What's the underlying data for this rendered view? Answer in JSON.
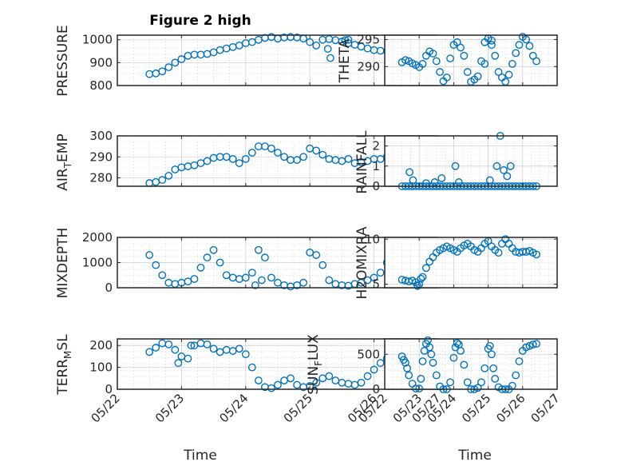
{
  "figure": {
    "title": "Figure 2 high",
    "xlabel": "Time",
    "x_ticklabels": [
      "05/22",
      "05/23",
      "05/24",
      "05/25",
      "05/26",
      "05/27"
    ],
    "marker_color": "#0072BD"
  },
  "chart_data": [
    {
      "type": "scatter",
      "ylabel": "PRESSURE",
      "ylim": [
        800,
        1020
      ],
      "yticks": [
        800,
        900,
        1000
      ],
      "x_unit": "days since 05/22",
      "x": [
        0.5,
        0.6,
        0.7,
        0.8,
        0.9,
        1.0,
        1.1,
        1.2,
        1.3,
        1.4,
        1.5,
        1.6,
        1.7,
        1.8,
        1.9,
        2.0,
        2.1,
        2.2,
        2.3,
        2.4,
        2.5,
        2.6,
        2.7,
        2.8,
        2.9,
        3.0,
        3.1,
        3.2,
        3.3,
        3.4,
        3.5,
        3.6,
        3.7,
        3.8,
        3.9,
        4.0,
        4.1,
        4.2,
        4.3,
        4.4,
        3.28,
        3.32,
        3.55,
        3.6
      ],
      "y": [
        850,
        853,
        862,
        880,
        900,
        915,
        930,
        935,
        935,
        938,
        945,
        955,
        962,
        968,
        975,
        985,
        990,
        1000,
        1008,
        1012,
        1005,
        1010,
        1012,
        1010,
        1005,
        990,
        975,
        1000,
        1003,
        998,
        992,
        985,
        978,
        970,
        962,
        955,
        952,
        950,
        948,
        952,
        960,
        920,
        998,
        1000
      ],
      "grid": true,
      "legend": "none"
    },
    {
      "type": "scatter",
      "ylabel": "THETA",
      "ylim": [
        286.5,
        295.8
      ],
      "yticks": [
        290,
        295
      ],
      "x_unit": "days since 05/22",
      "x": [
        0.5,
        0.6,
        0.7,
        0.8,
        0.9,
        1.0,
        1.1,
        1.2,
        1.3,
        1.4,
        1.5,
        1.6,
        1.7,
        1.8,
        1.9,
        2.0,
        2.1,
        2.2,
        2.3,
        2.4,
        2.5,
        2.6,
        2.7,
        2.8,
        2.9,
        3.0,
        3.1,
        3.2,
        3.3,
        3.4,
        3.5,
        3.6,
        3.7,
        3.8,
        3.9,
        4.0,
        4.1,
        4.2,
        4.3,
        4.4,
        2.9,
        3.1
      ],
      "y": [
        290.8,
        291.2,
        291.0,
        290.6,
        290.3,
        289.9,
        290.5,
        292.0,
        292.8,
        292.4,
        291.0,
        289.0,
        287.3,
        288.0,
        291.5,
        294.0,
        294.5,
        293.5,
        292.0,
        289.0,
        287.2,
        287.6,
        288.2,
        291.0,
        294.5,
        295.2,
        294.0,
        292.0,
        289.0,
        288.0,
        287.2,
        288.5,
        290.5,
        292.5,
        294.0,
        295.5,
        295.0,
        293.8,
        292.0,
        291.0,
        290.5,
        294.8
      ],
      "grid": true,
      "legend": "none"
    },
    {
      "type": "scatter",
      "ylabel": "AIR_TEMP",
      "ylim": [
        276,
        300
      ],
      "yticks": [
        280,
        290,
        300
      ],
      "x_unit": "days since 05/22",
      "x": [
        0.5,
        0.6,
        0.7,
        0.8,
        0.9,
        1.0,
        1.1,
        1.2,
        1.3,
        1.4,
        1.5,
        1.6,
        1.7,
        1.8,
        1.9,
        2.0,
        2.1,
        2.2,
        2.3,
        2.4,
        2.5,
        2.6,
        2.7,
        2.8,
        2.9,
        3.0,
        3.1,
        3.2,
        3.3,
        3.4,
        3.5,
        3.6,
        3.7,
        3.8,
        3.9,
        4.0,
        4.1,
        4.2,
        4.3,
        4.4
      ],
      "y": [
        277.5,
        278,
        279,
        281,
        284,
        285,
        285.5,
        286,
        287,
        288,
        289.5,
        290,
        290,
        289,
        287,
        289,
        292,
        295,
        295,
        294,
        292,
        290,
        288.5,
        288.5,
        290,
        294,
        293,
        291,
        289,
        288.5,
        288,
        289,
        287,
        287.5,
        288,
        289,
        289,
        290,
        291,
        292
      ],
      "grid": true,
      "legend": "none"
    },
    {
      "type": "scatter",
      "ylabel": "RAINFALL",
      "ylim": [
        0,
        2.5
      ],
      "yticks": [
        0,
        1,
        2
      ],
      "x_unit": "days since 05/22",
      "x": [
        0.5,
        0.6,
        0.7,
        0.8,
        0.9,
        1.0,
        1.1,
        1.2,
        1.3,
        1.4,
        1.5,
        1.6,
        1.7,
        1.8,
        1.9,
        2.0,
        2.1,
        2.2,
        2.3,
        2.4,
        2.5,
        2.6,
        2.7,
        2.8,
        2.9,
        3.0,
        3.1,
        3.2,
        3.3,
        3.4,
        3.5,
        3.6,
        3.7,
        3.8,
        3.9,
        4.0,
        4.1,
        4.2,
        4.3,
        4.4,
        0.72,
        0.82,
        1.2,
        1.45,
        1.65,
        2.05,
        2.15,
        3.05,
        3.25,
        3.35,
        3.45,
        3.55,
        3.65
      ],
      "y": [
        0,
        0,
        0,
        0,
        0,
        0,
        0,
        0,
        0,
        0,
        0,
        0,
        0,
        0,
        0,
        0,
        0,
        0,
        0,
        0,
        0,
        0,
        0,
        0,
        0,
        0,
        0,
        0,
        0,
        0,
        0,
        0,
        0,
        0,
        0,
        0,
        0,
        0,
        0,
        0,
        0.7,
        0.3,
        0.15,
        0.2,
        0.4,
        1.0,
        0.2,
        0.3,
        1.0,
        2.5,
        0.8,
        0.5,
        1.0
      ],
      "grid": true,
      "legend": "none"
    },
    {
      "type": "scatter",
      "ylabel": "MIXDEPTH",
      "ylim": [
        0,
        2000
      ],
      "yticks": [
        0,
        1000,
        2000
      ],
      "x_unit": "days since 05/22",
      "x": [
        0.5,
        0.6,
        0.7,
        0.8,
        0.9,
        1.0,
        1.1,
        1.2,
        1.3,
        1.4,
        1.5,
        1.6,
        1.7,
        1.8,
        1.9,
        2.0,
        2.1,
        2.2,
        2.3,
        2.4,
        2.5,
        2.6,
        2.7,
        2.8,
        2.9,
        3.0,
        3.1,
        3.2,
        3.3,
        3.4,
        3.5,
        3.6,
        3.7,
        3.8,
        3.9,
        4.0,
        4.1,
        4.2,
        4.3,
        4.4,
        2.15,
        2.25
      ],
      "y": [
        1300,
        900,
        500,
        200,
        150,
        200,
        250,
        350,
        800,
        1200,
        1500,
        1000,
        500,
        400,
        350,
        400,
        600,
        1500,
        1200,
        400,
        200,
        100,
        50,
        100,
        200,
        1400,
        1300,
        900,
        300,
        150,
        100,
        80,
        150,
        200,
        300,
        400,
        600,
        1000,
        1400,
        1800,
        100,
        300
      ],
      "grid": true,
      "legend": "none"
    },
    {
      "type": "scatter",
      "ylabel": "H2OMIXRA",
      "ylim": [
        4.6,
        10.2
      ],
      "yticks": [
        5,
        10
      ],
      "x_unit": "days since 05/22",
      "x": [
        0.5,
        0.6,
        0.7,
        0.8,
        0.9,
        1.0,
        1.1,
        1.2,
        1.3,
        1.4,
        1.5,
        1.6,
        1.7,
        1.8,
        1.9,
        2.0,
        2.1,
        2.2,
        2.3,
        2.4,
        2.5,
        2.6,
        2.7,
        2.8,
        2.9,
        3.0,
        3.1,
        3.2,
        3.3,
        3.4,
        3.5,
        3.6,
        3.7,
        3.8,
        3.9,
        4.0,
        4.1,
        4.2,
        4.3,
        4.4,
        0.95,
        1.05
      ],
      "y": [
        5.5,
        5.4,
        5.3,
        5.4,
        5.2,
        5.0,
        5.8,
        6.8,
        7.5,
        8.0,
        8.5,
        8.8,
        9.0,
        9.2,
        9.0,
        8.8,
        8.6,
        9.0,
        9.3,
        9.5,
        9.2,
        8.8,
        8.6,
        9.0,
        9.5,
        9.8,
        9.2,
        8.8,
        8.5,
        9.5,
        10.0,
        9.5,
        9.0,
        8.6,
        8.5,
        8.6,
        8.6,
        8.7,
        8.5,
        8.3,
        4.8,
        5.6
      ],
      "grid": true,
      "legend": "none"
    },
    {
      "type": "scatter",
      "ylabel": "TERR_MSL",
      "ylim": [
        0,
        230
      ],
      "yticks": [
        0,
        100,
        200
      ],
      "x_unit": "days since 05/22",
      "x": [
        0.5,
        0.6,
        0.7,
        0.8,
        0.9,
        1.0,
        1.1,
        1.2,
        1.3,
        1.4,
        1.5,
        1.6,
        1.7,
        1.8,
        1.9,
        2.0,
        2.1,
        2.2,
        2.3,
        2.4,
        2.5,
        2.6,
        2.7,
        2.8,
        2.9,
        3.0,
        3.1,
        3.2,
        3.3,
        3.4,
        3.5,
        3.6,
        3.7,
        3.8,
        3.9,
        4.0,
        4.1,
        4.2,
        4.3,
        4.4,
        0.95,
        1.15
      ],
      "y": [
        170,
        190,
        210,
        205,
        180,
        150,
        140,
        200,
        210,
        205,
        185,
        170,
        180,
        175,
        185,
        160,
        100,
        40,
        10,
        5,
        20,
        40,
        50,
        20,
        10,
        15,
        30,
        50,
        60,
        40,
        30,
        25,
        20,
        30,
        60,
        90,
        120,
        140,
        145,
        150,
        120,
        200
      ],
      "grid": true,
      "legend": "none"
    },
    {
      "type": "scatter",
      "ylabel": "SUN_FLUX",
      "ylim": [
        0,
        720
      ],
      "yticks": [
        0,
        500
      ],
      "x_unit": "days since 05/22",
      "x": [
        0.5,
        0.55,
        0.6,
        0.65,
        0.7,
        0.8,
        0.9,
        1.0,
        1.05,
        1.1,
        1.15,
        1.2,
        1.25,
        1.3,
        1.35,
        1.4,
        1.5,
        1.6,
        1.7,
        1.8,
        1.9,
        2.0,
        2.05,
        2.1,
        2.15,
        2.2,
        2.3,
        2.4,
        2.5,
        2.6,
        2.7,
        2.8,
        2.9,
        3.0,
        3.05,
        3.1,
        3.15,
        3.2,
        3.3,
        3.4,
        3.5,
        3.6,
        3.7,
        3.8,
        3.9,
        4.0,
        4.1,
        4.2,
        4.3,
        4.4
      ],
      "y": [
        470,
        420,
        380,
        300,
        200,
        80,
        10,
        10,
        150,
        400,
        550,
        650,
        700,
        600,
        500,
        380,
        200,
        40,
        0,
        0,
        100,
        450,
        600,
        660,
        640,
        550,
        350,
        100,
        0,
        0,
        20,
        100,
        300,
        580,
        620,
        500,
        300,
        150,
        30,
        0,
        0,
        0,
        50,
        200,
        400,
        550,
        600,
        620,
        640,
        650
      ],
      "grid": true,
      "legend": "none"
    }
  ]
}
